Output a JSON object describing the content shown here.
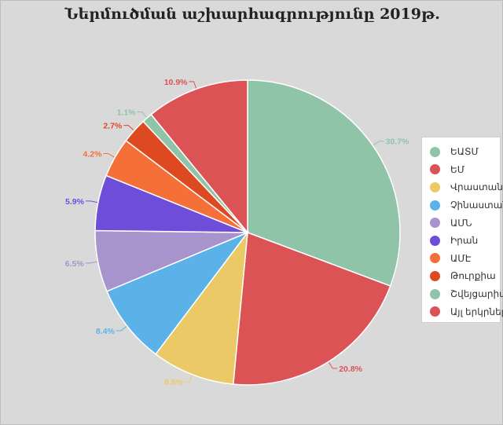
{
  "chart_data": {
    "type": "pie",
    "title": "Ներմուծման աշխարհագրությունը 2019թ.",
    "legend_position": "right",
    "slices": [
      {
        "label": "ԵԱՏՄ",
        "value": 30.7,
        "display": "30.7%",
        "color": "#8fc4a8"
      },
      {
        "label": "ԵՄ",
        "value": 20.8,
        "display": "20.8%",
        "color": "#dc5356"
      },
      {
        "label": "Վրաստան",
        "value": 8.8,
        "display": "8.8%",
        "color": "#ecc967"
      },
      {
        "label": "Չինաստան",
        "value": 8.4,
        "display": "8.4%",
        "color": "#5ab2e8"
      },
      {
        "label": "ԱՄՆ",
        "value": 6.5,
        "display": "6.5%",
        "color": "#a993cc"
      },
      {
        "label": "Իրան",
        "value": 5.9,
        "display": "5.9%",
        "color": "#6e4ed8"
      },
      {
        "label": "ԱՄԷ",
        "value": 4.2,
        "display": "4.2%",
        "color": "#f56f38"
      },
      {
        "label": "Թուրքիա",
        "value": 2.7,
        "display": "2.7%",
        "color": "#dd4a22"
      },
      {
        "label": "Շվեյցարիա",
        "value": 1.1,
        "display": "1.1%",
        "color": "#8fc4a8"
      },
      {
        "label": "Այլ երկրներ",
        "value": 10.9,
        "display": "10.9%",
        "color": "#dc5356"
      }
    ]
  }
}
